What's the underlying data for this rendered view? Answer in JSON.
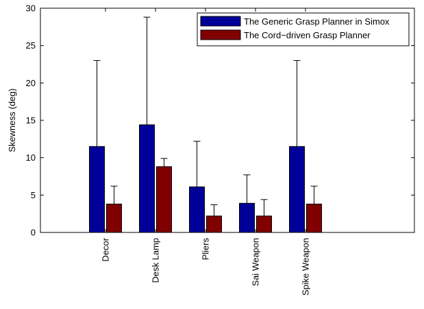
{
  "chart_data": {
    "type": "bar",
    "title": "",
    "xlabel": "",
    "ylabel": "Skewness (deg)",
    "ylim": [
      0,
      30
    ],
    "yticks": [
      0,
      5,
      10,
      15,
      20,
      25,
      30
    ],
    "categories": [
      "Decor",
      "Desk Lamp",
      "Pliers",
      "Sai Weapon",
      "Spike Weapon"
    ],
    "series": [
      {
        "name": "The Generic Grasp Planner in Simox",
        "color": "#000099",
        "values": [
          11.5,
          14.4,
          6.1,
          3.9,
          11.5
        ],
        "error_upper": [
          23.0,
          28.8,
          12.2,
          7.7,
          23.0
        ]
      },
      {
        "name": "The Cord−driven Grasp Planner",
        "color": "#800000",
        "values": [
          3.8,
          8.8,
          2.2,
          2.2,
          3.8
        ],
        "error_upper": [
          6.2,
          9.9,
          3.7,
          4.4,
          6.2
        ]
      }
    ],
    "grid": false,
    "legend_position": "top-right"
  }
}
